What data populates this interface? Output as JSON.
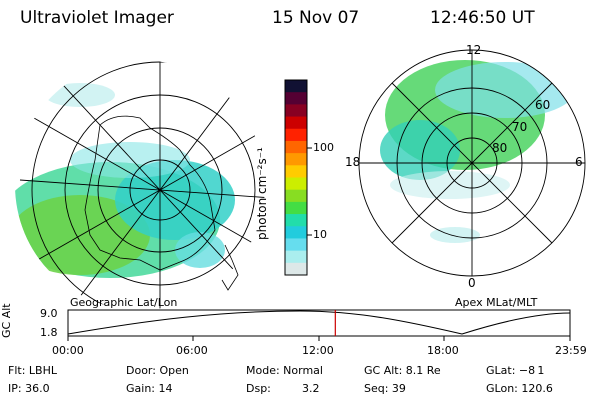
{
  "header": {
    "instrument": "Ultraviolet Imager",
    "date": "15 Nov 07",
    "time": "12:46:50 UT"
  },
  "colorbar": {
    "unit_label": "photon cm⁻²s⁻¹",
    "ticks": [
      "100",
      "10"
    ],
    "scale": "log",
    "colors": [
      "#111133",
      "#550033",
      "#880022",
      "#cc0000",
      "#ff2200",
      "#ff6600",
      "#ff9900",
      "#ffcc00",
      "#ccee00",
      "#88dd22",
      "#44dd44",
      "#22ddaa",
      "#22ccdd",
      "#66ddee",
      "#aaeeee",
      "#dde8e8"
    ]
  },
  "left_panel": {
    "label": "Geographic Lat/Lon"
  },
  "right_panel": {
    "label": "Apex  MLat/MLT",
    "mlt_labels": {
      "top": "12",
      "left": "18",
      "right": "6",
      "bottom": "0"
    },
    "lat_labels": [
      "60",
      "70",
      "80"
    ]
  },
  "timeline": {
    "axis_label": "GC Alt",
    "y_ticks": [
      "9.0",
      "1.8"
    ],
    "x_ticks": [
      "00:00",
      "06:00",
      "12:00",
      "18:00",
      "23:59"
    ],
    "current_time_fraction": 0.5325,
    "marker_color": "#cc0000"
  },
  "info": {
    "flt": "Flt: LBHL",
    "ip": "IP: 36.0",
    "door": "Door: Open",
    "gain": "Gain: 14",
    "mode": "Mode: Normal",
    "dsp_label": "Dsp:",
    "dsp_value": "3.2",
    "gcalt": "GC Alt: 8.1 Re",
    "seq": "Seq: 39",
    "glat": "GLat: −8 1",
    "glon": "GLon: 120.6"
  }
}
